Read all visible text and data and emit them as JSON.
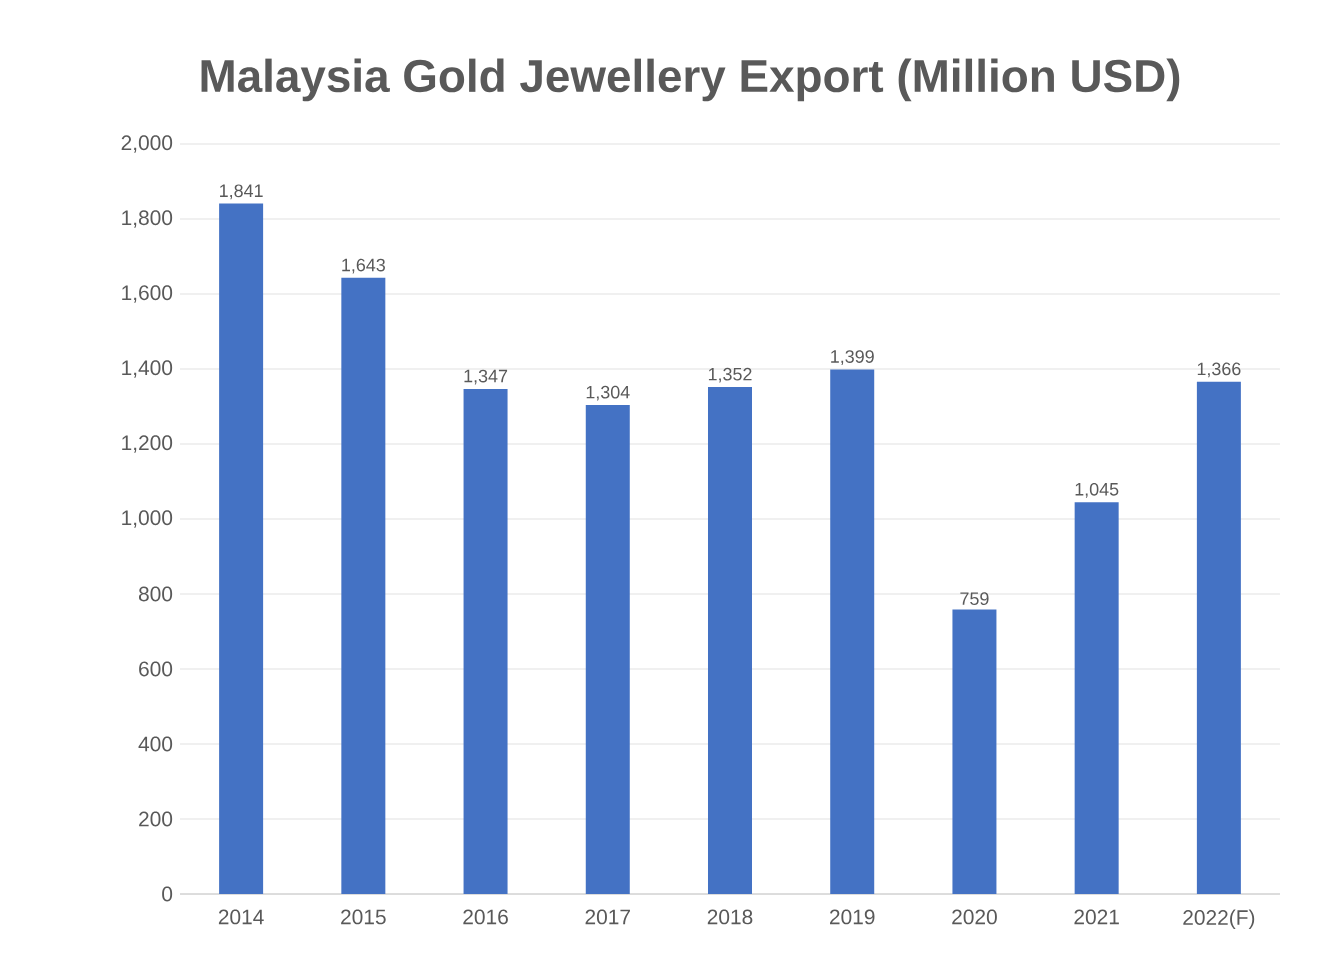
{
  "chart_data": {
    "type": "bar",
    "title": "Malaysia Gold Jewellery Export (Million USD)",
    "categories": [
      "2014",
      "2015",
      "2016",
      "2017",
      "2018",
      "2019",
      "2020",
      "2021",
      "2022(F)"
    ],
    "values": [
      1841,
      1643,
      1347,
      1304,
      1352,
      1399,
      759,
      1045,
      1366
    ],
    "value_labels": [
      "1,841",
      "1,643",
      "1,347",
      "1,304",
      "1,352",
      "1,399",
      "759",
      "1,045",
      "1,366"
    ],
    "color": "#4472c4",
    "ylim": [
      0,
      2000
    ],
    "yticks": [
      0,
      200,
      400,
      600,
      800,
      {
        "value": 1000,
        "label": "1,000"
      },
      {
        "value": 1200,
        "label": "1,200"
      },
      {
        "value": 1400,
        "label": "1,400"
      },
      {
        "value": 1600,
        "label": "1,600"
      },
      {
        "value": 1800,
        "label": "1,800"
      },
      {
        "value": 2000,
        "label": "2,000"
      }
    ],
    "grid": "y"
  }
}
